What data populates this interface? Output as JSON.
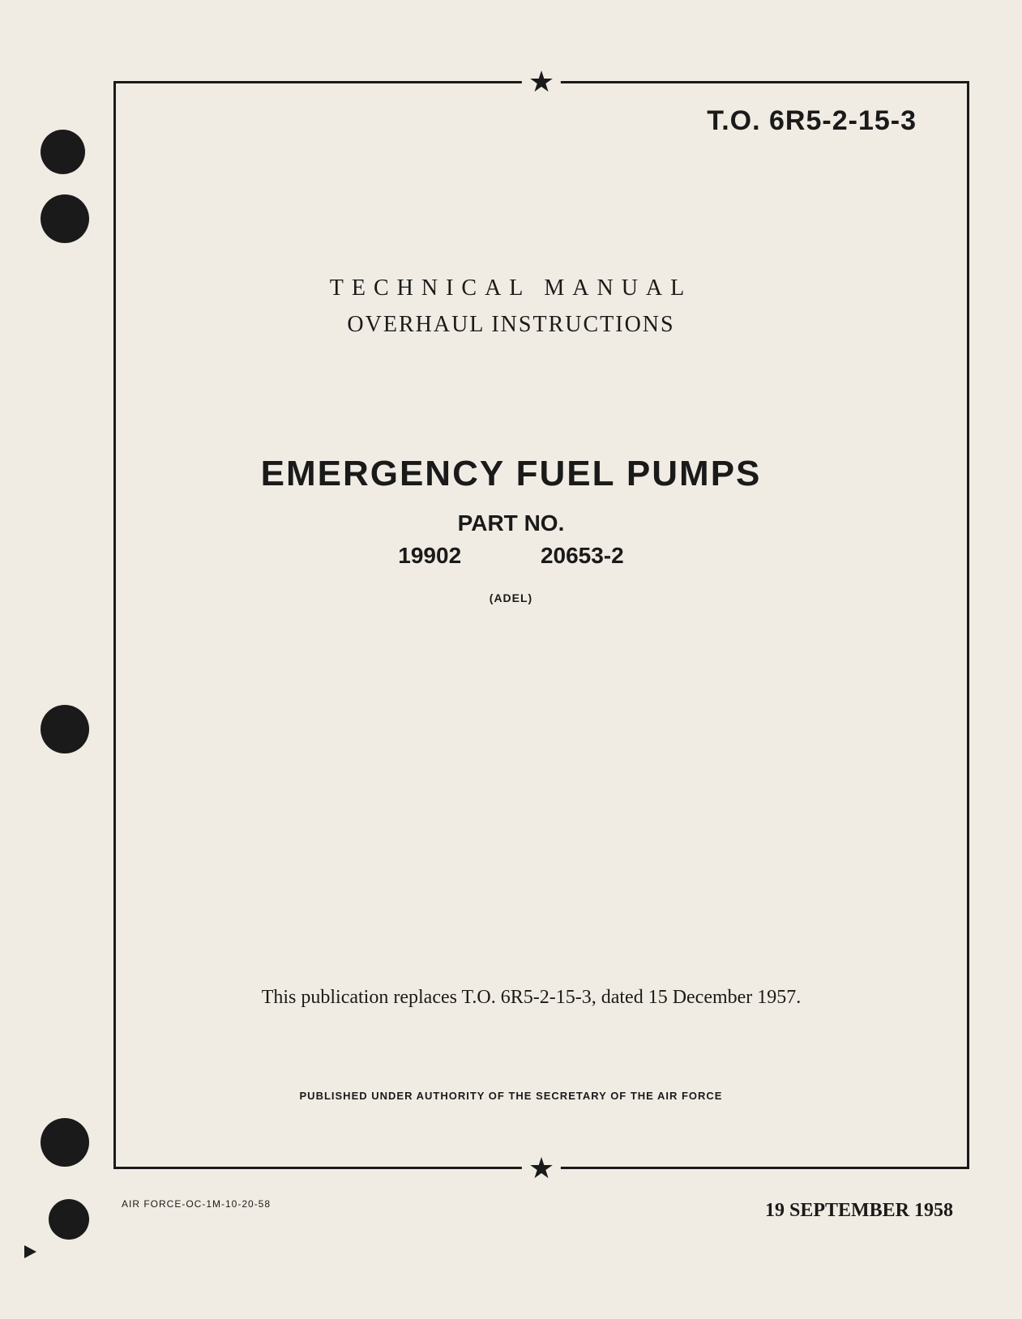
{
  "document": {
    "to_number": "T.O. 6R5-2-15-3",
    "doc_type_line1": "TECHNICAL MANUAL",
    "doc_type_line2": "OVERHAUL INSTRUCTIONS",
    "title": "EMERGENCY FUEL PUMPS",
    "part_no_label": "PART NO.",
    "part_numbers": {
      "part1": "19902",
      "part2": "20653-2"
    },
    "manufacturer": "(ADEL)",
    "replaces_text": "This publication replaces T.O. 6R5-2-15-3, dated 15 December 1957.",
    "authority": "PUBLISHED UNDER AUTHORITY OF THE SECRETARY OF THE AIR FORCE",
    "footer_left": "AIR FORCE-OC-1M-10-20-58",
    "publication_date": "19 SEPTEMBER 1958",
    "star_glyph": "★"
  },
  "styling": {
    "page_background": "#f0ece3",
    "body_background": "#e8e4dc",
    "text_color": "#1a1a1a",
    "border_color": "#1a1a1a",
    "border_width": 3,
    "hole_color": "#1a1a1a",
    "title_font": "Arial, sans-serif",
    "body_font": "Times New Roman, serif",
    "title_fontsize": 44,
    "to_number_fontsize": 34,
    "subtitle_fontsize": 28,
    "footer_date_fontsize": 24,
    "small_text_fontsize": 13
  }
}
